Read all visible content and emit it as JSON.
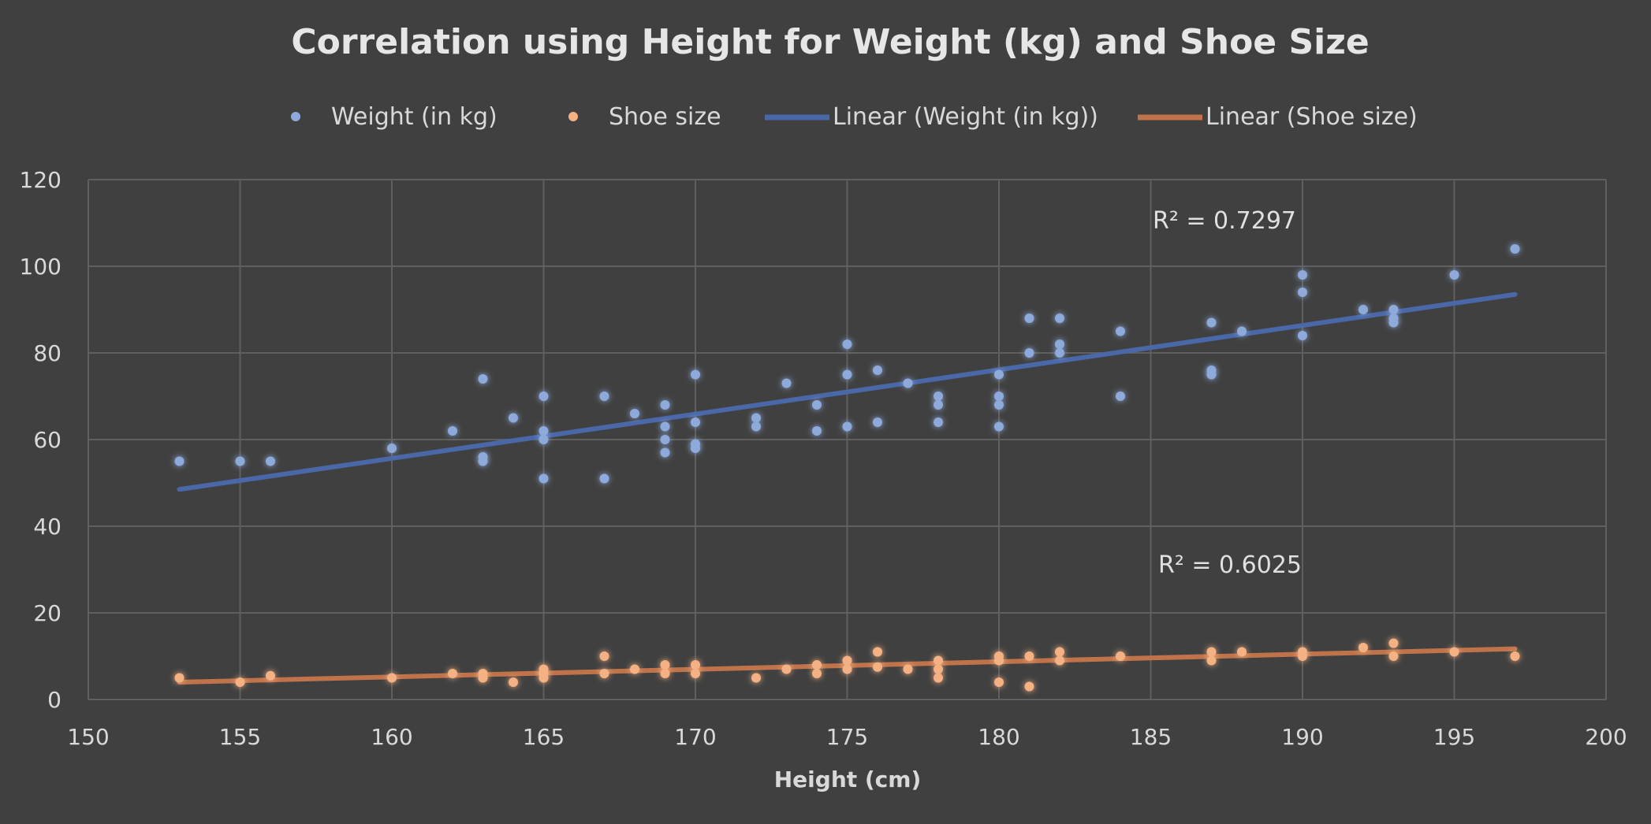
{
  "chart_data": {
    "type": "scatter",
    "title": "Correlation using Height for Weight (kg) and Shoe Size",
    "xlabel": "Height (cm)",
    "ylabel": "",
    "xlim": [
      150,
      200
    ],
    "ylim": [
      0,
      120
    ],
    "x_ticks": [
      150,
      155,
      160,
      165,
      170,
      175,
      180,
      185,
      190,
      195,
      200
    ],
    "y_ticks": [
      0,
      20,
      40,
      60,
      80,
      100,
      120
    ],
    "grid": true,
    "legend_position": "top",
    "series": [
      {
        "name": "Weight (in kg)",
        "color": "#8eaadb",
        "glow": "#4472c4",
        "points": [
          [
            153,
            55
          ],
          [
            155,
            55
          ],
          [
            156,
            55
          ],
          [
            160,
            58
          ],
          [
            162,
            62
          ],
          [
            163,
            74
          ],
          [
            163,
            56
          ],
          [
            163,
            55
          ],
          [
            164,
            65
          ],
          [
            165,
            70
          ],
          [
            165,
            62
          ],
          [
            165,
            60
          ],
          [
            165,
            51
          ],
          [
            167,
            70
          ],
          [
            167,
            51
          ],
          [
            168,
            66
          ],
          [
            169,
            68
          ],
          [
            169,
            63
          ],
          [
            169,
            60
          ],
          [
            169,
            57
          ],
          [
            170,
            75
          ],
          [
            170,
            64
          ],
          [
            170,
            59
          ],
          [
            170,
            58
          ],
          [
            172,
            65
          ],
          [
            172,
            63
          ],
          [
            173,
            73
          ],
          [
            174,
            68
          ],
          [
            174,
            62
          ],
          [
            175,
            82
          ],
          [
            175,
            75
          ],
          [
            175,
            63
          ],
          [
            176,
            76
          ],
          [
            176,
            64
          ],
          [
            177,
            73
          ],
          [
            178,
            70
          ],
          [
            178,
            68
          ],
          [
            178,
            64
          ],
          [
            180,
            75
          ],
          [
            180,
            70
          ],
          [
            180,
            68
          ],
          [
            180,
            63
          ],
          [
            181,
            88
          ],
          [
            181,
            80
          ],
          [
            182,
            88
          ],
          [
            182,
            82
          ],
          [
            182,
            80
          ],
          [
            184,
            85
          ],
          [
            184,
            70
          ],
          [
            187,
            87
          ],
          [
            187,
            76
          ],
          [
            187,
            75
          ],
          [
            188,
            85
          ],
          [
            190,
            98
          ],
          [
            190,
            94
          ],
          [
            190,
            84
          ],
          [
            192,
            90
          ],
          [
            193,
            90
          ],
          [
            193,
            88
          ],
          [
            193,
            87
          ],
          [
            195,
            98
          ],
          [
            197,
            104
          ]
        ]
      },
      {
        "name": "Shoe size",
        "color": "#f4b183",
        "glow": "#ed7d31",
        "points": [
          [
            153,
            5
          ],
          [
            155,
            4
          ],
          [
            156,
            5.5
          ],
          [
            160,
            5
          ],
          [
            162,
            6
          ],
          [
            163,
            6
          ],
          [
            163,
            5
          ],
          [
            164,
            4
          ],
          [
            165,
            7
          ],
          [
            165,
            6
          ],
          [
            165,
            5
          ],
          [
            167,
            10
          ],
          [
            167,
            6
          ],
          [
            168,
            7
          ],
          [
            169,
            8
          ],
          [
            169,
            6
          ],
          [
            170,
            8
          ],
          [
            170,
            6
          ],
          [
            172,
            5
          ],
          [
            173,
            7
          ],
          [
            174,
            8
          ],
          [
            174,
            6
          ],
          [
            175,
            9
          ],
          [
            175,
            7
          ],
          [
            176,
            11
          ],
          [
            176,
            7.5
          ],
          [
            177,
            7
          ],
          [
            178,
            9
          ],
          [
            178,
            7
          ],
          [
            178,
            5
          ],
          [
            180,
            10
          ],
          [
            180,
            9
          ],
          [
            180,
            4
          ],
          [
            181,
            10
          ],
          [
            181,
            3
          ],
          [
            182,
            11
          ],
          [
            182,
            9
          ],
          [
            184,
            10
          ],
          [
            187,
            11
          ],
          [
            187,
            9
          ],
          [
            188,
            11
          ],
          [
            190,
            11
          ],
          [
            190,
            10
          ],
          [
            192,
            12
          ],
          [
            193,
            13
          ],
          [
            193,
            10
          ],
          [
            195,
            11
          ],
          [
            197,
            10
          ]
        ]
      }
    ],
    "trendlines": [
      {
        "name": "Linear (Weight (in kg))",
        "color": "#4a67a8",
        "x": [
          153,
          197
        ],
        "y": [
          48.5,
          93.5
        ],
        "r2_label": "R² = 0.7297"
      },
      {
        "name": "Linear (Shoe size)",
        "color": "#c0734a",
        "x": [
          153,
          197
        ],
        "y": [
          4.0,
          11.7
        ],
        "r2_label": "R² = 0.6025"
      }
    ]
  }
}
